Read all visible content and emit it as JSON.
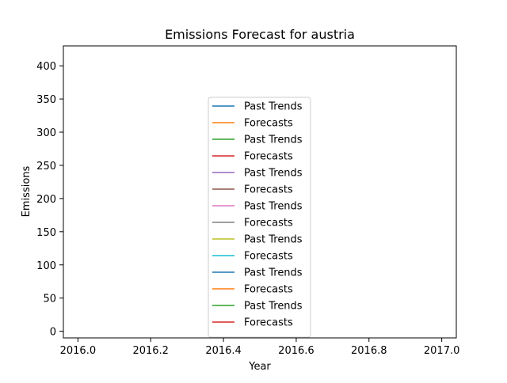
{
  "chart_data": {
    "type": "line",
    "title": "Emissions Forecast for austria",
    "xlabel": "Year",
    "ylabel": "Emissions",
    "xlim": [
      2015.96,
      2017.04
    ],
    "ylim": [
      -10,
      430
    ],
    "xticks": [
      "2016.0",
      "2016.2",
      "2016.4",
      "2016.6",
      "2016.8",
      "2017.0"
    ],
    "xtick_values": [
      2016.0,
      2016.2,
      2016.4,
      2016.6,
      2016.8,
      2017.0
    ],
    "yticks": [
      "0",
      "50",
      "100",
      "150",
      "200",
      "250",
      "300",
      "350",
      "400"
    ],
    "ytick_values": [
      0,
      50,
      100,
      150,
      200,
      250,
      300,
      350,
      400
    ],
    "grid": false,
    "legend_position": "center",
    "series": [
      {
        "name": "Past Trends",
        "color": "#1f77b4",
        "values": []
      },
      {
        "name": "Forecasts",
        "color": "#ff7f0e",
        "values": []
      },
      {
        "name": "Past Trends",
        "color": "#2ca02c",
        "values": []
      },
      {
        "name": "Forecasts",
        "color": "#d62728",
        "values": []
      },
      {
        "name": "Past Trends",
        "color": "#9467bd",
        "values": []
      },
      {
        "name": "Forecasts",
        "color": "#8c564b",
        "values": []
      },
      {
        "name": "Past Trends",
        "color": "#e377c2",
        "values": []
      },
      {
        "name": "Forecasts",
        "color": "#7f7f7f",
        "values": []
      },
      {
        "name": "Past Trends",
        "color": "#bcbd22",
        "values": []
      },
      {
        "name": "Forecasts",
        "color": "#17becf",
        "values": []
      },
      {
        "name": "Past Trends",
        "color": "#1f77b4",
        "values": []
      },
      {
        "name": "Forecasts",
        "color": "#ff7f0e",
        "values": []
      },
      {
        "name": "Past Trends",
        "color": "#2ca02c",
        "values": []
      },
      {
        "name": "Forecasts",
        "color": "#d62728",
        "values": []
      }
    ]
  }
}
